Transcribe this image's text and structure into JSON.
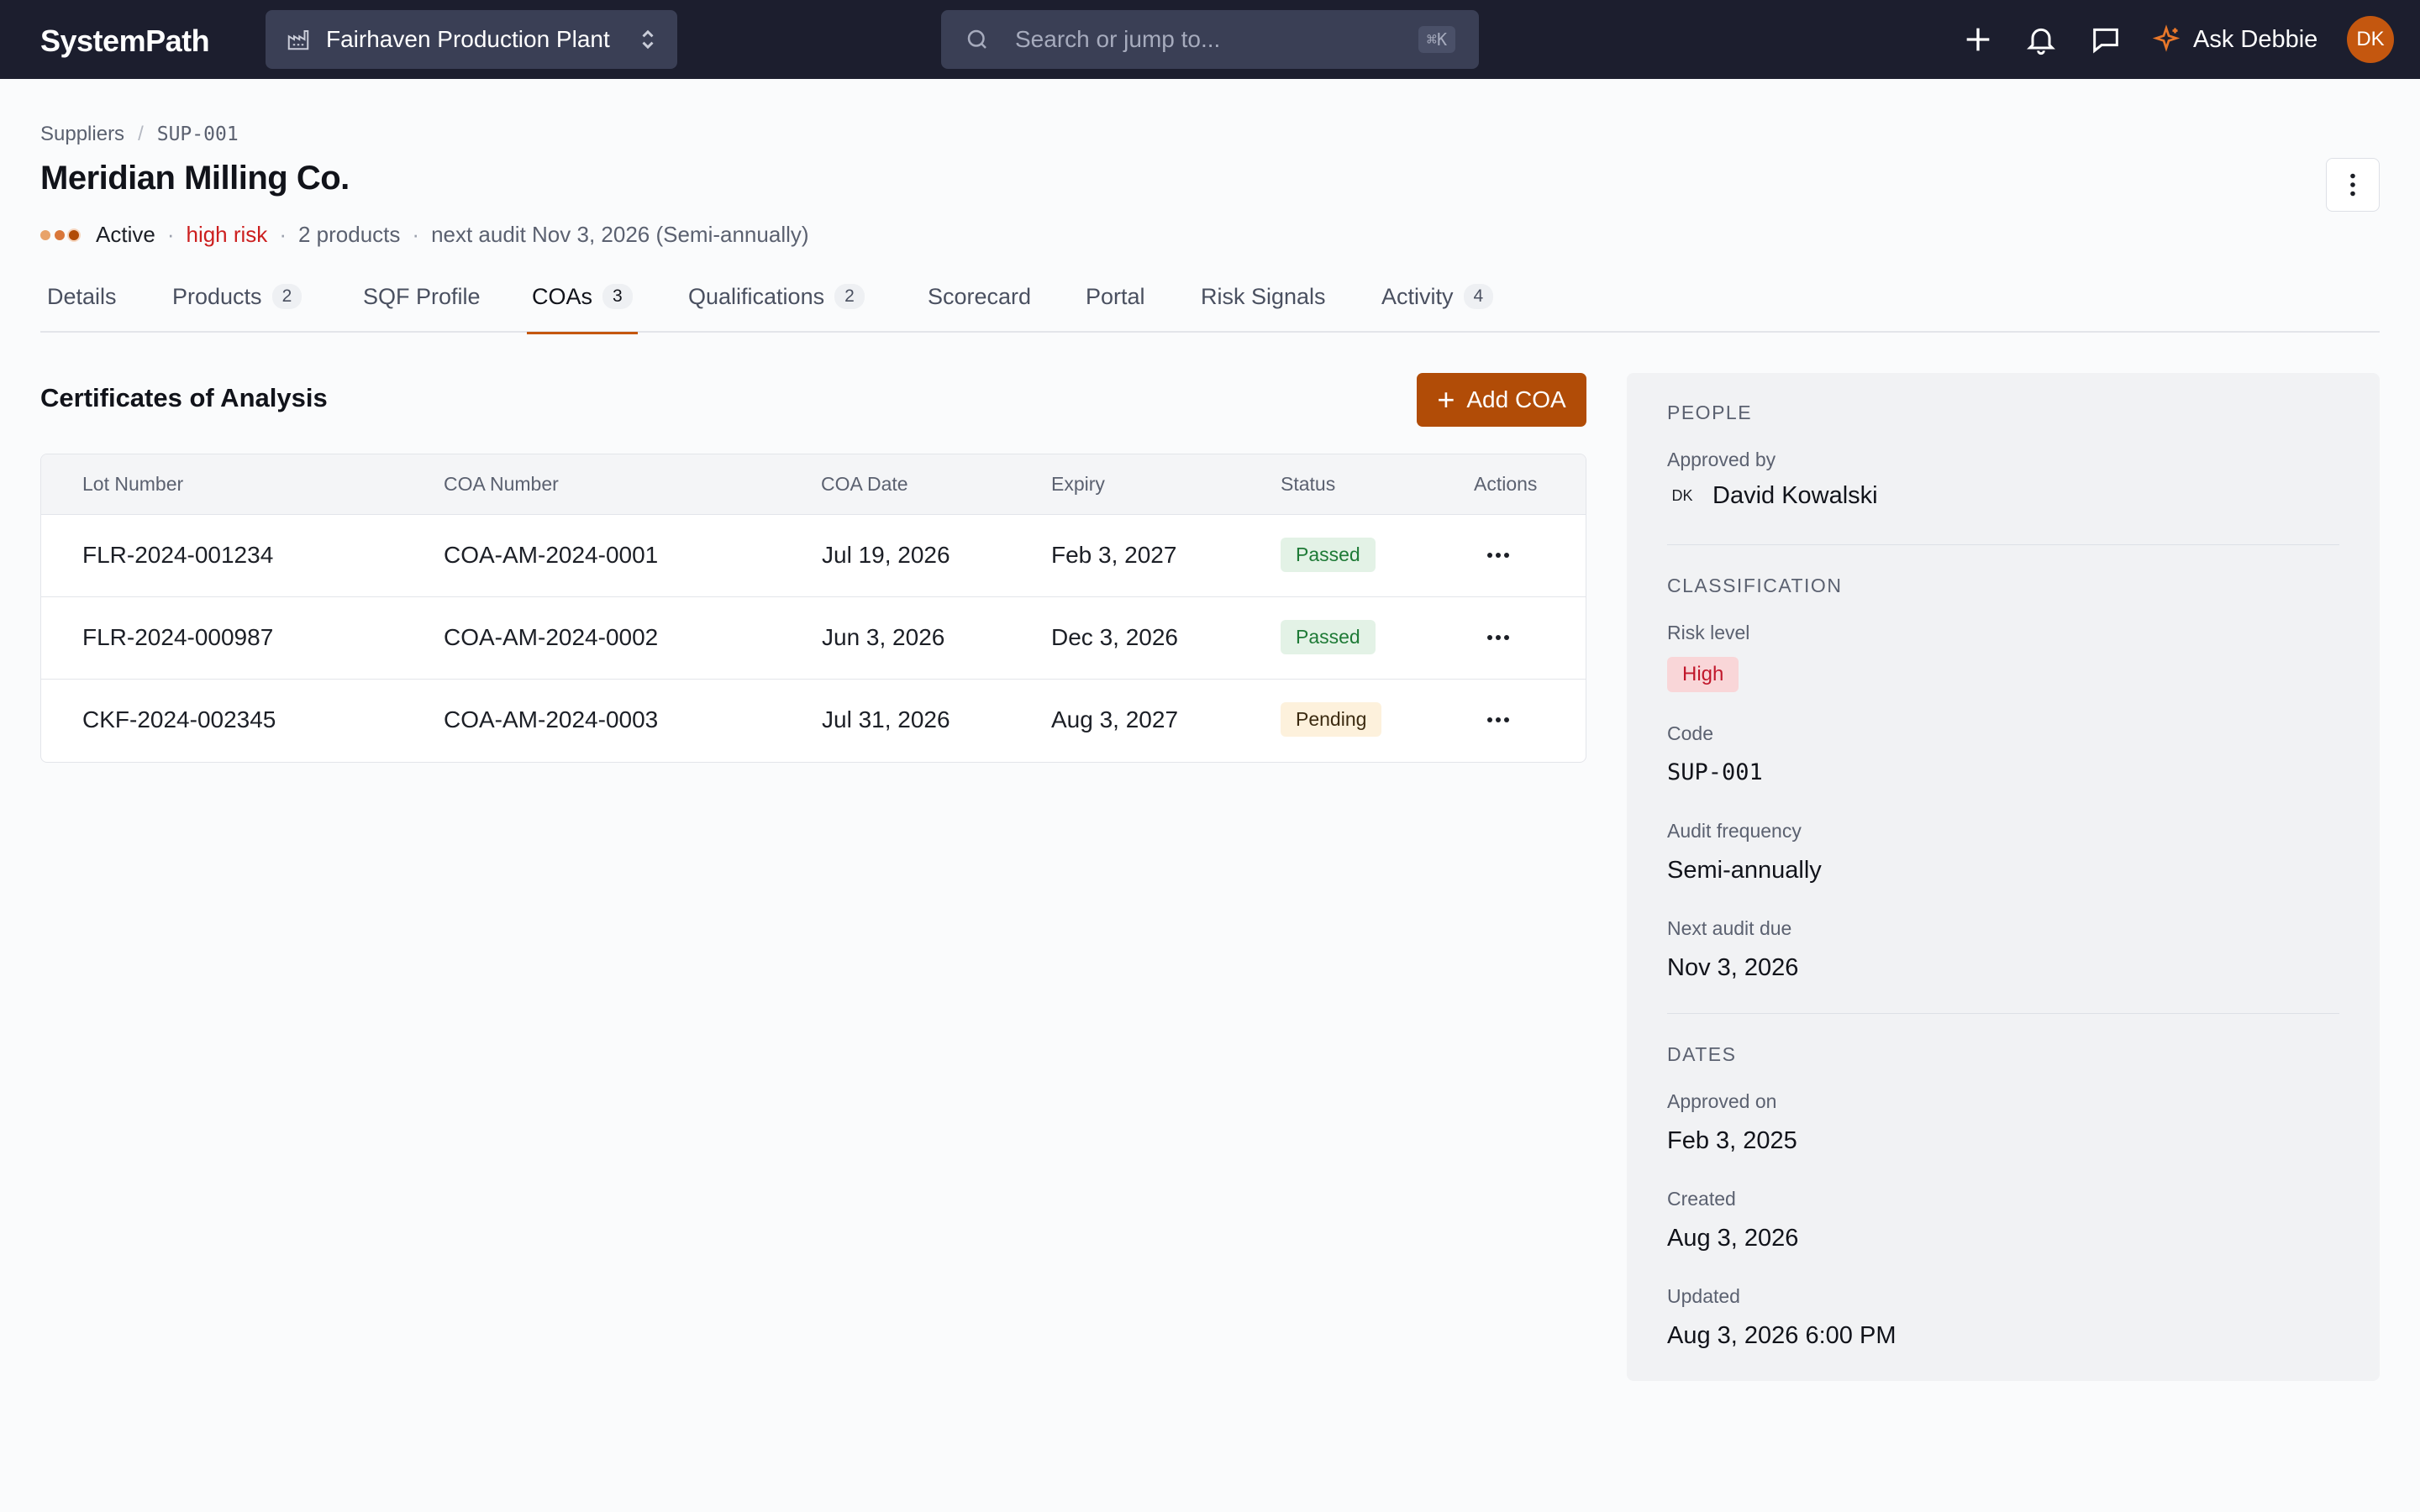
{
  "topbar": {
    "brand": "SystemPath",
    "plant": "Fairhaven Production Plant",
    "search_placeholder": "Search or jump to...",
    "search_shortcut": "⌘K",
    "ask_label": "Ask Debbie",
    "avatar_initials": "DK"
  },
  "breadcrumb": {
    "root": "Suppliers",
    "current": "SUP-001"
  },
  "supplier": {
    "name": "Meridian Milling Co.",
    "status": "Active",
    "risk": "high risk",
    "products": "2 products",
    "next_audit": "next audit Nov 3, 2026 (Semi-annually)"
  },
  "tabs": [
    {
      "label": "Details"
    },
    {
      "label": "Products",
      "count": "2"
    },
    {
      "label": "SQF Profile"
    },
    {
      "label": "COAs",
      "count": "3",
      "active": true
    },
    {
      "label": "Qualifications",
      "count": "2"
    },
    {
      "label": "Scorecard"
    },
    {
      "label": "Portal"
    },
    {
      "label": "Risk Signals"
    },
    {
      "label": "Activity",
      "count": "4"
    }
  ],
  "coa": {
    "title": "Certificates of Analysis",
    "add_label": "Add COA",
    "columns": [
      "Lot Number",
      "COA Number",
      "COA Date",
      "Expiry",
      "Status",
      "Actions"
    ],
    "rows": [
      {
        "lot": "FLR-2024-001234",
        "coa": "COA-AM-2024-0001",
        "date": "Jul 19, 2026",
        "expiry": "Feb 3, 2027",
        "status": "Passed"
      },
      {
        "lot": "FLR-2024-000987",
        "coa": "COA-AM-2024-0002",
        "date": "Jun 3, 2026",
        "expiry": "Dec 3, 2026",
        "status": "Passed"
      },
      {
        "lot": "CKF-2024-002345",
        "coa": "COA-AM-2024-0003",
        "date": "Jul 31, 2026",
        "expiry": "Aug 3, 2027",
        "status": "Pending"
      }
    ]
  },
  "side": {
    "people_h": "PEOPLE",
    "approved_by_l": "Approved by",
    "approver_initials": "DK",
    "approver_name": "David Kowalski",
    "classification_h": "CLASSIFICATION",
    "risk_level_l": "Risk level",
    "risk_level_v": "High",
    "code_l": "Code",
    "code_v": "SUP-001",
    "audit_freq_l": "Audit frequency",
    "audit_freq_v": "Semi-annually",
    "next_audit_l": "Next audit due",
    "next_audit_v": "Nov 3, 2026",
    "dates_h": "DATES",
    "approved_on_l": "Approved on",
    "approved_on_v": "Feb 3, 2025",
    "created_l": "Created",
    "created_v": "Aug 3, 2026",
    "updated_l": "Updated",
    "updated_v": "Aug 3, 2026 6:00 PM"
  },
  "colors": {
    "accent": "#c4570f",
    "topbar": "#1c1e2e",
    "risk_red": "#cc1f1f",
    "passed_bg": "#e3f2e6",
    "pending_bg": "#fdf1dc"
  }
}
